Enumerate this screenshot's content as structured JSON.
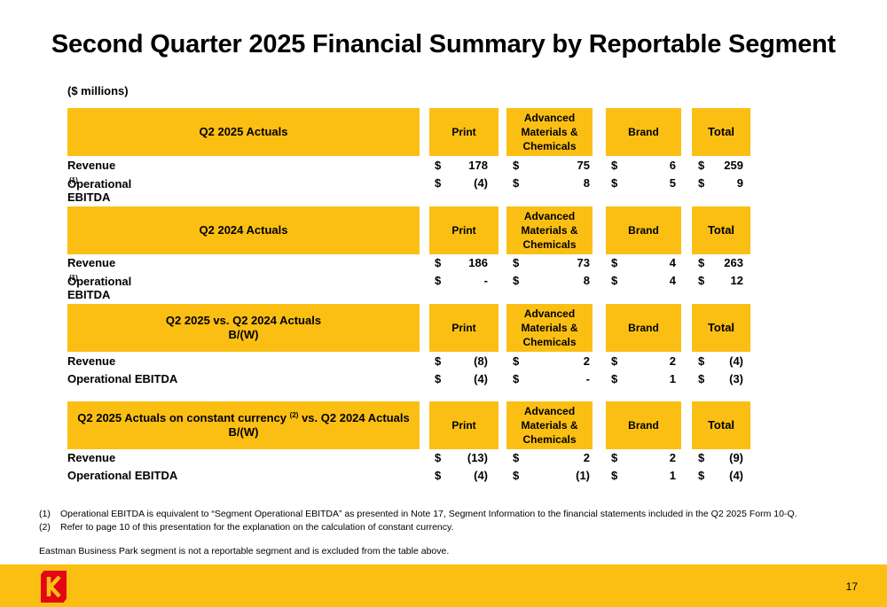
{
  "page": {
    "title": "Second Quarter 2025 Financial Summary by Reportable Segment",
    "units": "($ millions)",
    "page_number": "17"
  },
  "columns": {
    "print": "Print",
    "amc": "Advanced Materials & Chemicals",
    "brand": "Brand",
    "total": "Total"
  },
  "currency_symbol": "$",
  "sections": [
    {
      "title": "Q2 2025 Actuals",
      "rows": [
        {
          "label": "Revenue",
          "values": [
            "178",
            "75",
            "6",
            "259"
          ]
        },
        {
          "label": "Operational EBITDA",
          "footnote": "(1)",
          "values": [
            "(4)",
            "8",
            "5",
            "9"
          ]
        }
      ]
    },
    {
      "title": "Q2 2024 Actuals",
      "rows": [
        {
          "label": "Revenue",
          "values": [
            "186",
            "73",
            "4",
            "263"
          ]
        },
        {
          "label": "Operational EBITDA",
          "footnote": "(1)",
          "values": [
            "-",
            "8",
            "4",
            "12"
          ]
        }
      ]
    },
    {
      "title": "Q2 2025 vs. Q2 2024 Actuals",
      "subtitle": "B/(W)",
      "rows": [
        {
          "label": "Revenue",
          "values": [
            "(8)",
            "2",
            "2",
            "(4)"
          ]
        },
        {
          "label": "Operational EBITDA",
          "values": [
            "(4)",
            "-",
            "1",
            "(3)"
          ]
        }
      ]
    },
    {
      "title_part1": "Q2 2025 Actuals on constant currency",
      "title_sup": "(2)",
      "title_part2": "vs. Q2 2024 Actuals",
      "subtitle": "B/(W)",
      "rows": [
        {
          "label": "Revenue",
          "values": [
            "(13)",
            "2",
            "2",
            "(9)"
          ]
        },
        {
          "label": "Operational EBITDA",
          "values": [
            "(4)",
            "(1)",
            "1",
            "(4)"
          ]
        }
      ]
    }
  ],
  "footnotes": [
    {
      "num": "(1)",
      "text": "Operational EBITDA is equivalent to “Segment Operational EBITDA” as presented in Note 17, Segment Information to the financial statements included in the Q2 2025 Form 10-Q."
    },
    {
      "num": "(2)",
      "text": "Refer to page 10 of this presentation for the explanation on the calculation of constant currency."
    }
  ],
  "disclaimer": "Eastman Business Park segment is not a reportable segment and is excluded from the table above.",
  "colors": {
    "accent": "#FBBF14",
    "logo_red": "#E30613"
  },
  "icons": {
    "logo": "kodak-logo-icon"
  }
}
